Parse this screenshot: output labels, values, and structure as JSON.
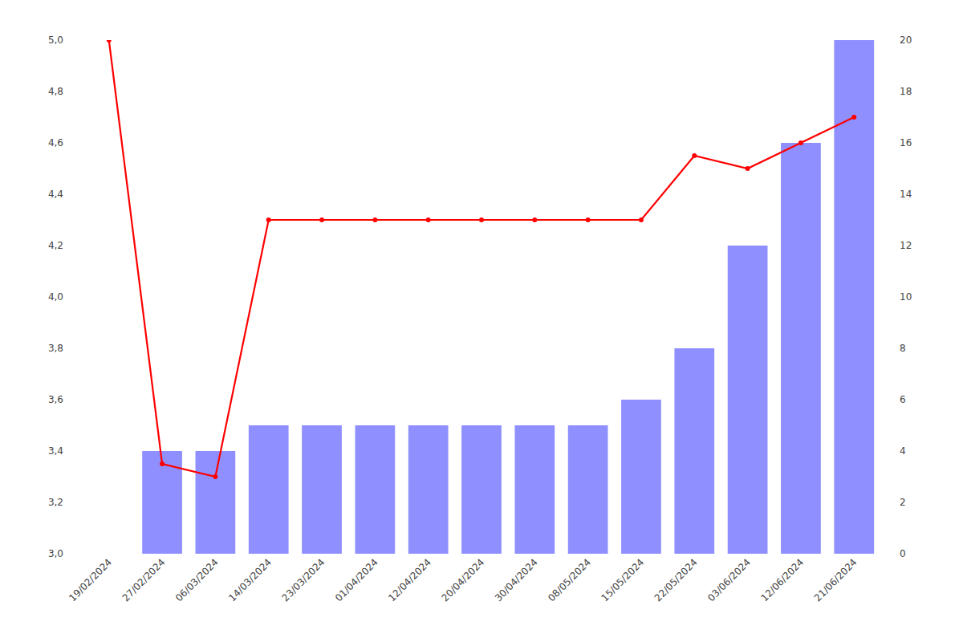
{
  "chart_data": {
    "type": "bar",
    "categories": [
      "19/02/2024",
      "27/02/2024",
      "06/03/2024",
      "14/03/2024",
      "23/03/2024",
      "01/04/2024",
      "12/04/2024",
      "20/04/2024",
      "30/04/2024",
      "08/05/2024",
      "15/05/2024",
      "22/05/2024",
      "03/06/2024",
      "12/06/2024",
      "21/06/2024"
    ],
    "series": [
      {
        "type": "bar",
        "axis": "y2",
        "color": "#7b7bff",
        "values": [
          0,
          4,
          4,
          5,
          5,
          5,
          5,
          5,
          5,
          5,
          6,
          8,
          12,
          16,
          20
        ]
      },
      {
        "type": "line",
        "color": "#ff0000",
        "marker": "circle",
        "values": [
          5.0,
          3.35,
          3.3,
          4.3,
          4.3,
          4.3,
          4.3,
          4.3,
          4.3,
          4.3,
          4.3,
          4.55,
          4.5,
          4.6,
          4.7
        ]
      }
    ],
    "ylim": [
      3.0,
      5.0
    ],
    "yticks": [
      {
        "value": 3.0,
        "label": "3,0"
      },
      {
        "value": 3.2,
        "label": "3,2"
      },
      {
        "value": 3.4,
        "label": "3,4"
      },
      {
        "value": 3.6,
        "label": "3,6"
      },
      {
        "value": 3.8,
        "label": "3,8"
      },
      {
        "value": 4.0,
        "label": "4,0"
      },
      {
        "value": 4.2,
        "label": "4,2"
      },
      {
        "value": 4.4,
        "label": "4,4"
      },
      {
        "value": 4.6,
        "label": "4,6"
      },
      {
        "value": 4.8,
        "label": "4,8"
      },
      {
        "value": 5.0,
        "label": "5,0"
      }
    ],
    "y2lim": [
      0,
      20
    ],
    "y2ticks": [
      0,
      2,
      4,
      6,
      8,
      10,
      12,
      14,
      16,
      18,
      20
    ],
    "grid": false
  }
}
